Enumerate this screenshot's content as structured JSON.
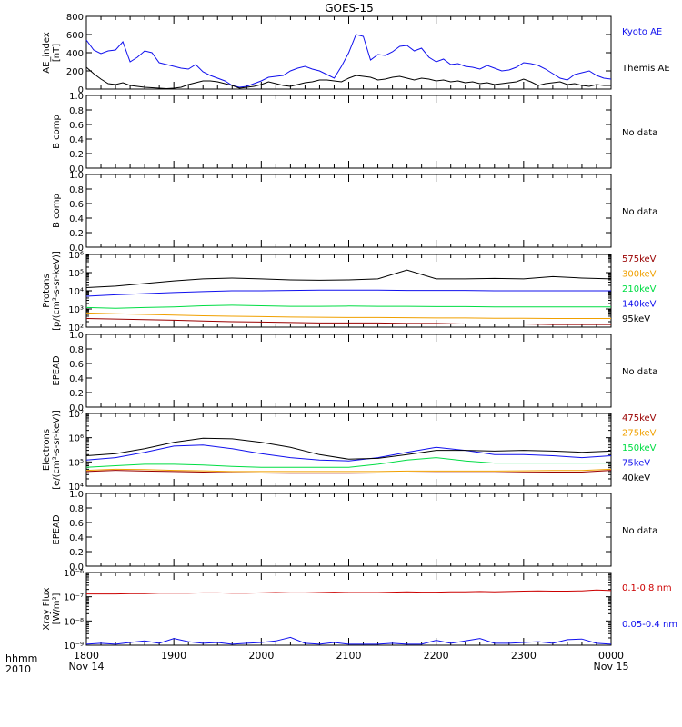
{
  "title": "GOES-15",
  "time_axis": {
    "corner_top": "hhmm",
    "corner_bottom": "2010",
    "ticks": [
      {
        "hhmm": "1800",
        "date": "Nov 14"
      },
      {
        "hhmm": "1900",
        "date": ""
      },
      {
        "hhmm": "2000",
        "date": ""
      },
      {
        "hhmm": "2100",
        "date": ""
      },
      {
        "hhmm": "2200",
        "date": ""
      },
      {
        "hhmm": "2300",
        "date": ""
      },
      {
        "hhmm": "0000",
        "date": "Nov 15"
      }
    ]
  },
  "colors": {
    "black": "#000000",
    "blue": "#1010ee",
    "red": "#cc0000",
    "orange": "#f0a000",
    "green": "#00dd44",
    "maroon": "#990000"
  },
  "chart_data": [
    {
      "type": "line",
      "ylabel": [
        "AE_index",
        "[nT]"
      ],
      "ylim": [
        0,
        800
      ],
      "yticks": [
        "0",
        "200",
        "400",
        "600",
        "800"
      ],
      "x": [
        0,
        5,
        10,
        15,
        20,
        25,
        30,
        35,
        40,
        45,
        50,
        55,
        60,
        65,
        70,
        75,
        80,
        85,
        90,
        95,
        100,
        105,
        110,
        115,
        120,
        125,
        130,
        135,
        140,
        145,
        150,
        155,
        160,
        165,
        170,
        175,
        180,
        185,
        190,
        195,
        200,
        205,
        210,
        215,
        220,
        225,
        230,
        235,
        240,
        245,
        250,
        255,
        260,
        265,
        270,
        275,
        280,
        285,
        290,
        295,
        300,
        305,
        310,
        315,
        320,
        325,
        330,
        335,
        340,
        345,
        350,
        355,
        360
      ],
      "series": [
        {
          "name": "Kyoto AE",
          "color": "#1010ee",
          "values": [
            540,
            430,
            390,
            420,
            430,
            520,
            300,
            350,
            420,
            400,
            290,
            270,
            250,
            230,
            220,
            270,
            190,
            150,
            120,
            90,
            40,
            20,
            30,
            60,
            90,
            130,
            140,
            150,
            200,
            230,
            250,
            220,
            200,
            160,
            120,
            250,
            400,
            600,
            580,
            320,
            380,
            370,
            410,
            470,
            480,
            420,
            450,
            350,
            300,
            330,
            270,
            280,
            250,
            240,
            220,
            260,
            230,
            200,
            210,
            240,
            290,
            280,
            260,
            220,
            170,
            120,
            100,
            160,
            180,
            200,
            150,
            120,
            110
          ]
        },
        {
          "name": "Themis AE",
          "color": "#000000",
          "values": [
            240,
            170,
            110,
            60,
            50,
            70,
            40,
            30,
            20,
            15,
            10,
            5,
            10,
            20,
            50,
            70,
            90,
            90,
            80,
            60,
            40,
            10,
            20,
            30,
            50,
            80,
            60,
            40,
            30,
            50,
            70,
            80,
            100,
            100,
            90,
            80,
            120,
            150,
            140,
            130,
            100,
            110,
            130,
            140,
            120,
            100,
            120,
            110,
            90,
            100,
            80,
            90,
            70,
            80,
            60,
            70,
            50,
            60,
            70,
            80,
            110,
            80,
            40,
            60,
            70,
            80,
            50,
            60,
            40,
            30,
            50,
            40,
            40
          ]
        }
      ],
      "label_colors": [
        "#1010ee",
        "#000000"
      ]
    },
    {
      "type": "line",
      "ylabel": [
        "B comp"
      ],
      "ylim": [
        0,
        1
      ],
      "yticks": [
        "0.0",
        "0.2",
        "0.4",
        "0.6",
        "0.8",
        "1.0"
      ],
      "series": [],
      "status": "No data"
    },
    {
      "type": "line",
      "ylabel": [
        "B comp"
      ],
      "ylim": [
        0,
        1
      ],
      "yticks": [
        "0.0",
        "0.2",
        "0.4",
        "0.6",
        "0.8",
        "1.0"
      ],
      "series": [],
      "status": "No data"
    },
    {
      "type": "line",
      "log_scale": true,
      "ylabel": [
        "Protons",
        "[p/(cm²-s-sr-keV)]"
      ],
      "ylim": [
        100,
        1000000
      ],
      "yticks": [
        "10²",
        "10³",
        "10⁴",
        "10⁵",
        "10⁶"
      ],
      "ytick_values": [
        100,
        1000,
        10000,
        100000,
        1000000
      ],
      "x": [
        0,
        20,
        40,
        60,
        80,
        100,
        120,
        140,
        160,
        180,
        200,
        220,
        240,
        260,
        280,
        300,
        320,
        340,
        360
      ],
      "series": [
        {
          "name": "575keV",
          "color": "#990000",
          "values": [
            300,
            280,
            260,
            240,
            220,
            200,
            190,
            180,
            170,
            170,
            170,
            160,
            160,
            150,
            150,
            150,
            140,
            140,
            140
          ]
        },
        {
          "name": "300keV",
          "color": "#f0a000",
          "values": [
            600,
            550,
            500,
            460,
            420,
            400,
            380,
            360,
            350,
            340,
            340,
            330,
            320,
            320,
            310,
            310,
            300,
            300,
            300
          ]
        },
        {
          "name": "210keV",
          "color": "#00dd44",
          "values": [
            1200,
            1100,
            1200,
            1300,
            1500,
            1600,
            1500,
            1400,
            1400,
            1450,
            1400,
            1400,
            1350,
            1350,
            1300,
            1300,
            1300,
            1300,
            1300
          ]
        },
        {
          "name": "140keV",
          "color": "#1010ee",
          "values": [
            5000,
            6000,
            7000,
            8000,
            9000,
            10000,
            10000,
            10500,
            11000,
            11000,
            11000,
            10500,
            10500,
            10500,
            10000,
            10000,
            10000,
            10000,
            10000
          ]
        },
        {
          "name": "95keV",
          "color": "#000000",
          "values": [
            15000,
            18000,
            25000,
            35000,
            45000,
            50000,
            45000,
            40000,
            38000,
            40000,
            45000,
            140000,
            45000,
            45000,
            48000,
            45000,
            60000,
            50000,
            45000
          ]
        }
      ],
      "label_colors": [
        "#990000",
        "#f0a000",
        "#00dd44",
        "#1010ee",
        "#000000"
      ]
    },
    {
      "type": "line",
      "ylabel": [
        "EPEAD"
      ],
      "ylim": [
        0,
        1
      ],
      "yticks": [
        "0.0",
        "0.2",
        "0.4",
        "0.6",
        "0.8",
        "1.0"
      ],
      "series": [],
      "status": "No data"
    },
    {
      "type": "line",
      "log_scale": true,
      "ylabel": [
        "Electrons",
        "[e/(cm²-s-sr-keV)]"
      ],
      "ylim": [
        10000,
        10000000
      ],
      "yticks": [
        "10⁴",
        "10⁵",
        "10⁶",
        "10⁷"
      ],
      "ytick_values": [
        10000,
        100000,
        1000000,
        10000000
      ],
      "x": [
        0,
        20,
        40,
        60,
        80,
        100,
        120,
        140,
        160,
        180,
        200,
        220,
        240,
        260,
        280,
        300,
        320,
        340,
        360
      ],
      "series": [
        {
          "name": "475keV",
          "color": "#990000",
          "values": [
            40000,
            45000,
            42000,
            40000,
            38000,
            36000,
            35000,
            34000,
            34000,
            34000,
            35000,
            35000,
            36000,
            36000,
            36000,
            37000,
            38000,
            38000,
            45000
          ]
        },
        {
          "name": "275keV",
          "color": "#f0a000",
          "values": [
            45000,
            50000,
            48000,
            45000,
            43000,
            40000,
            40000,
            40000,
            40000,
            40000,
            40000,
            42000,
            42000,
            42000,
            42000,
            43000,
            44000,
            44000,
            50000
          ]
        },
        {
          "name": "150keV",
          "color": "#00dd44",
          "values": [
            60000,
            70000,
            80000,
            80000,
            75000,
            65000,
            60000,
            60000,
            60000,
            60000,
            80000,
            120000,
            150000,
            110000,
            90000,
            90000,
            90000,
            90000,
            90000
          ]
        },
        {
          "name": "75keV",
          "color": "#1010ee",
          "values": [
            120000,
            150000,
            250000,
            450000,
            500000,
            350000,
            220000,
            150000,
            120000,
            110000,
            150000,
            250000,
            400000,
            300000,
            200000,
            200000,
            180000,
            150000,
            180000
          ]
        },
        {
          "name": "40keV",
          "color": "#000000",
          "values": [
            180000,
            220000,
            350000,
            650000,
            950000,
            900000,
            650000,
            400000,
            200000,
            130000,
            140000,
            200000,
            300000,
            300000,
            280000,
            300000,
            280000,
            250000,
            280000
          ]
        }
      ],
      "label_colors": [
        "#990000",
        "#f0a000",
        "#00dd44",
        "#1010ee",
        "#000000"
      ]
    },
    {
      "type": "line",
      "ylabel": [
        "EPEAD"
      ],
      "ylim": [
        0,
        1
      ],
      "yticks": [
        "0.0",
        "0.2",
        "0.4",
        "0.6",
        "0.8",
        "1.0"
      ],
      "series": [],
      "status": "No data"
    },
    {
      "type": "line",
      "log_scale": true,
      "ylabel": [
        "Xray Flux",
        "[W/m²]"
      ],
      "ylim": [
        1e-09,
        1e-06
      ],
      "yticks": [
        "10⁻⁹",
        "10⁻⁸",
        "10⁻⁷",
        "10⁻⁶"
      ],
      "ytick_values": [
        1e-09,
        1e-08,
        1e-07,
        1e-06
      ],
      "x": [
        0,
        10,
        20,
        30,
        40,
        50,
        60,
        70,
        80,
        90,
        100,
        110,
        120,
        130,
        140,
        150,
        160,
        170,
        180,
        190,
        200,
        210,
        220,
        230,
        240,
        250,
        260,
        270,
        280,
        290,
        300,
        310,
        320,
        330,
        340,
        350,
        360
      ],
      "series": [
        {
          "name": "0.1-0.8 nm",
          "color": "#cc0000",
          "values": [
            1.3e-07,
            1.3e-07,
            1.3e-07,
            1.35e-07,
            1.35e-07,
            1.4e-07,
            1.4e-07,
            1.4e-07,
            1.45e-07,
            1.45e-07,
            1.4e-07,
            1.4e-07,
            1.45e-07,
            1.5e-07,
            1.45e-07,
            1.45e-07,
            1.5e-07,
            1.55e-07,
            1.5e-07,
            1.5e-07,
            1.5e-07,
            1.55e-07,
            1.6e-07,
            1.55e-07,
            1.55e-07,
            1.6e-07,
            1.6e-07,
            1.65e-07,
            1.6e-07,
            1.65e-07,
            1.7e-07,
            1.75e-07,
            1.7e-07,
            1.7e-07,
            1.75e-07,
            1.9e-07,
            1.8e-07
          ]
        },
        {
          "name": "0.05-0.4 nm",
          "color": "#1010ee",
          "values": [
            1.1e-09,
            1.2e-09,
            1.1e-09,
            1.3e-09,
            1.5e-09,
            1.2e-09,
            1.9e-09,
            1.4e-09,
            1.2e-09,
            1.3e-09,
            1.1e-09,
            1.2e-09,
            1.3e-09,
            1.5e-09,
            2.1e-09,
            1.2e-09,
            1.1e-09,
            1.3e-09,
            1.1e-09,
            1.1e-09,
            1.1e-09,
            1.2e-09,
            1.1e-09,
            1.1e-09,
            1.6e-09,
            1.2e-09,
            1.5e-09,
            1.9e-09,
            1.2e-09,
            1.2e-09,
            1.3e-09,
            1.4e-09,
            1.2e-09,
            1.7e-09,
            1.8e-09,
            1.2e-09,
            1.1e-09
          ]
        }
      ],
      "label_colors": [
        "#cc0000",
        "#1010ee"
      ]
    }
  ]
}
